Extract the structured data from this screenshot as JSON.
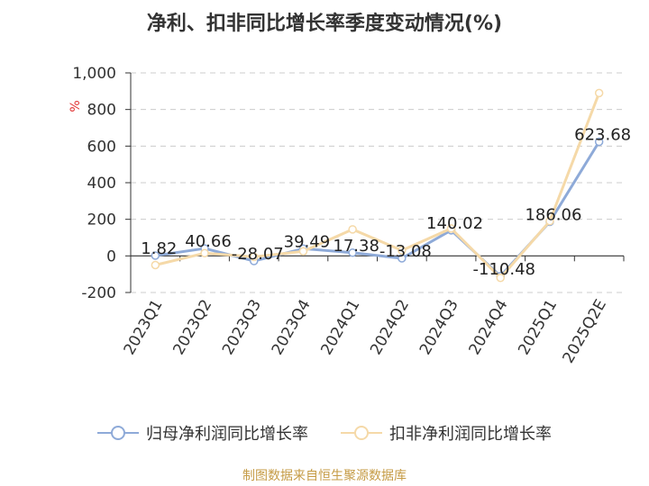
{
  "title": "净利、扣非同比增长率季度变动情况(%)",
  "source": "制图数据来自恒生聚源数据库",
  "colors": {
    "series1": "#8eaad8",
    "series2": "#f5d9a8",
    "grid": "#cccccc",
    "axis": "#333333",
    "unit": "#e03030"
  },
  "chart_data": {
    "type": "line",
    "title": "净利、扣非同比增长率季度变动情况(%)",
    "ylabel": "%",
    "ylim": [
      -200,
      1000
    ],
    "yticks": [
      -200,
      0,
      200,
      400,
      600,
      800,
      1000
    ],
    "ytick_labels": [
      "-200",
      "0",
      "200",
      "400",
      "600",
      "800",
      "1,000"
    ],
    "grid": true,
    "legend_position": "bottom",
    "categories": [
      "2023Q1",
      "2023Q2",
      "2023Q3",
      "2023Q4",
      "2024Q1",
      "2024Q2",
      "2024Q3",
      "2024Q4",
      "2025Q1",
      "2025Q2E"
    ],
    "series": [
      {
        "name": "归母净利润同比增长率",
        "values": [
          1.82,
          40.66,
          -28.07,
          39.49,
          17.38,
          -13.08,
          140.02,
          -110.48,
          186.06,
          623.68
        ],
        "labels": [
          "1.82",
          "40.66",
          "-28.07",
          "39.49",
          "17.38",
          "-13.08",
          "140.02",
          "-110.48",
          "186.06",
          "623.68"
        ]
      },
      {
        "name": "扣非净利润同比增长率",
        "values": [
          -50,
          15,
          -5,
          25,
          145,
          30,
          150,
          -120,
          190,
          890
        ]
      }
    ]
  }
}
